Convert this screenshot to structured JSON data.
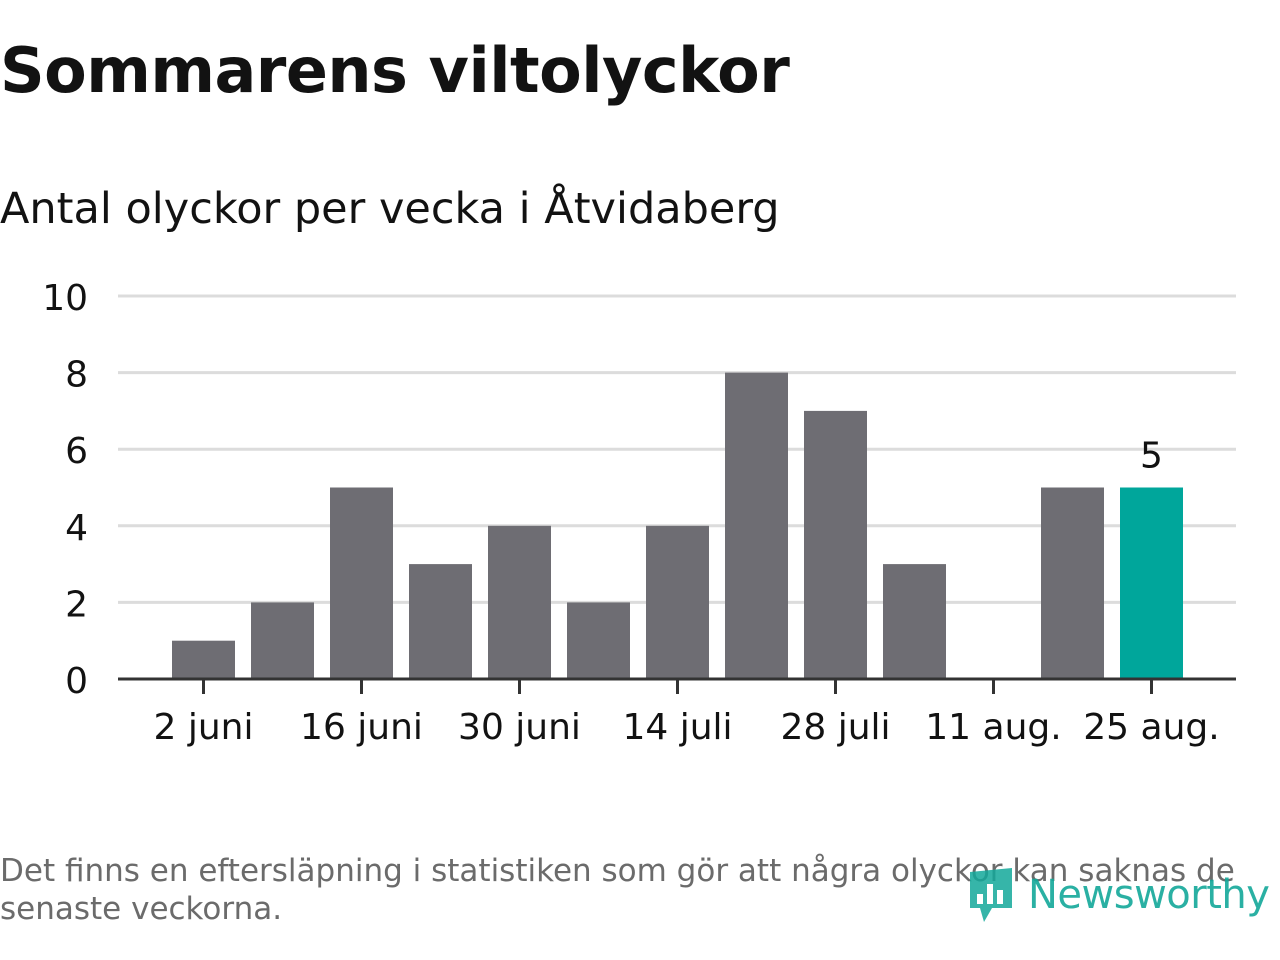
{
  "title": "Sommarens viltolyckor",
  "subtitle": "Antal olyckor per vecka i Åtvidaberg",
  "footnote": "Det finns en eftersläpning i statistiken som gör att några olyckor kan saknas de senaste veckorna.",
  "logo": {
    "text": "Newsworthy",
    "icon": "newsworthy-logo-icon"
  },
  "colors": {
    "bar": "#6e6d73",
    "highlight": "#00a69b",
    "grid": "#dcdcdc",
    "axis": "#333333",
    "text": "#121212",
    "footnote": "#6b6b6b"
  },
  "chart_data": {
    "type": "bar",
    "title": "Antal olyckor per vecka i Åtvidaberg",
    "xlabel": "",
    "ylabel": "",
    "ylim": [
      0,
      10
    ],
    "y_ticks": [
      "0",
      "2",
      "4",
      "6",
      "8",
      "10"
    ],
    "x_tick_labels": [
      {
        "label": "2 juni",
        "index": 0
      },
      {
        "label": "16 juni",
        "index": 2
      },
      {
        "label": "30 juni",
        "index": 4
      },
      {
        "label": "14 juli",
        "index": 6
      },
      {
        "label": "28 juli",
        "index": 8
      },
      {
        "label": "11 aug.",
        "index": 10
      },
      {
        "label": "25 aug.",
        "index": 12
      }
    ],
    "values": [
      1,
      2,
      5,
      3,
      4,
      2,
      4,
      8,
      7,
      3,
      0,
      5,
      5
    ],
    "highlight_index": 12,
    "data_labels": [
      {
        "index": 12,
        "label": "5"
      }
    ],
    "grid": true,
    "legend": "none"
  }
}
